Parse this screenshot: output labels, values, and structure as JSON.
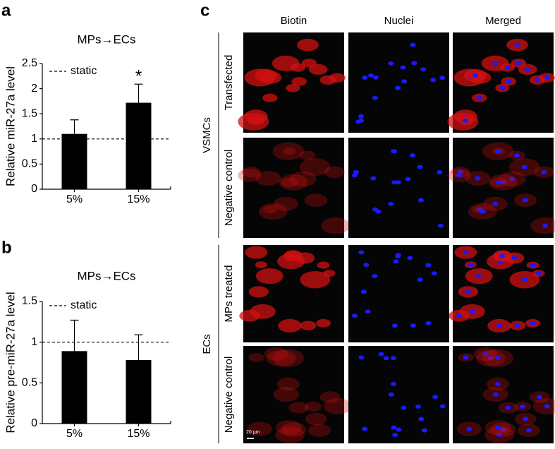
{
  "panel_labels": [
    "a",
    "b",
    "c"
  ],
  "chart_data": [
    {
      "type": "bar",
      "title": "MPs→ECs",
      "y_label": "Relative miR-27a level",
      "categories": [
        "5%",
        "15%"
      ],
      "values": [
        1.1,
        1.72
      ],
      "errors": [
        0.28,
        0.37
      ],
      "color": "#000000",
      "ylim": [
        0,
        2.5
      ],
      "yticks": [
        0,
        0.5,
        1,
        1.5,
        2,
        2.5
      ],
      "reference_line": 1,
      "reference_label": "static",
      "annotation": "*"
    },
    {
      "type": "bar",
      "title": "MPs→ECs",
      "y_label": "Relative pre-miR-27a level",
      "categories": [
        "5%",
        "15%"
      ],
      "values": [
        0.89,
        0.78
      ],
      "errors": [
        0.38,
        0.31
      ],
      "color": "#000000",
      "ylim": [
        0,
        1.5
      ],
      "yticks": [
        0,
        0.5,
        1,
        1.5
      ],
      "reference_line": 1,
      "reference_label": "static"
    }
  ],
  "microscopy": {
    "columns": [
      "Biotin",
      "Nuclei",
      "Merged"
    ],
    "groups": [
      {
        "name": "VSMCs",
        "rows": [
          "Transfected",
          "Negative control"
        ]
      },
      {
        "name": "ECs",
        "rows": [
          "MPs treated",
          "Negative control"
        ]
      }
    ],
    "scale_bar": "20 μm"
  }
}
